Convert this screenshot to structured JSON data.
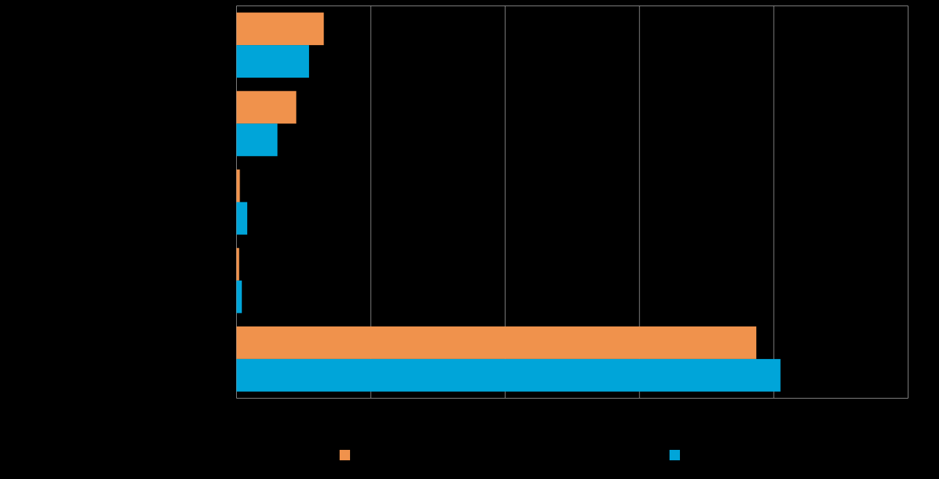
{
  "chart_data": {
    "type": "hbar",
    "categories": [
      null,
      null,
      null,
      null,
      null
    ],
    "series": [
      {
        "color": "#f0924c",
        "values": [
          13.0,
          8.9,
          0.5,
          0.4,
          77.4
        ]
      },
      {
        "color": "#00a5d9",
        "values": [
          10.8,
          6.1,
          1.6,
          0.8,
          81.0
        ]
      }
    ],
    "xlim": [
      0,
      100
    ],
    "xticks": [
      0,
      20,
      40,
      60,
      80,
      100
    ],
    "grid": true,
    "legend": "bottom"
  }
}
